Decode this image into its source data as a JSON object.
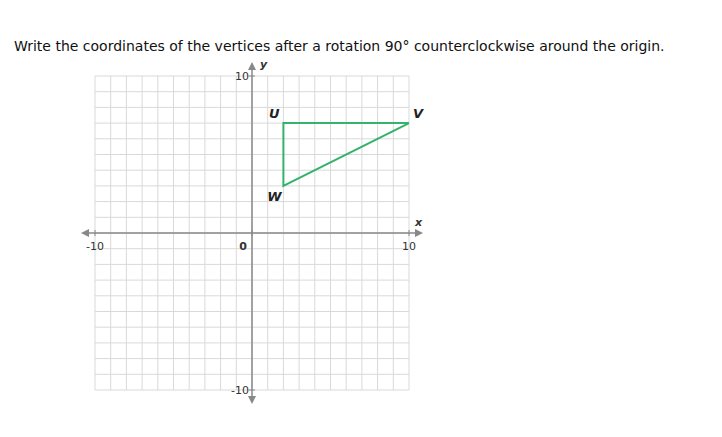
{
  "chart_data": {
    "type": "polygon",
    "title": "Write the coordinates of the vertices after a rotation 90° counterclockwise around the origin.",
    "x_label": "x",
    "y_label": "y",
    "x": [
      2,
      10,
      2
    ],
    "values": [
      7,
      7,
      3
    ],
    "point_labels": [
      "U",
      "V",
      "W"
    ],
    "color": "#33b36b",
    "xlim": [
      -10,
      10
    ],
    "ylim": [
      -10,
      10
    ],
    "xticks": [
      -10,
      0,
      10
    ],
    "yticks": [
      -10,
      10
    ],
    "grid": true,
    "grid_step": 1
  }
}
